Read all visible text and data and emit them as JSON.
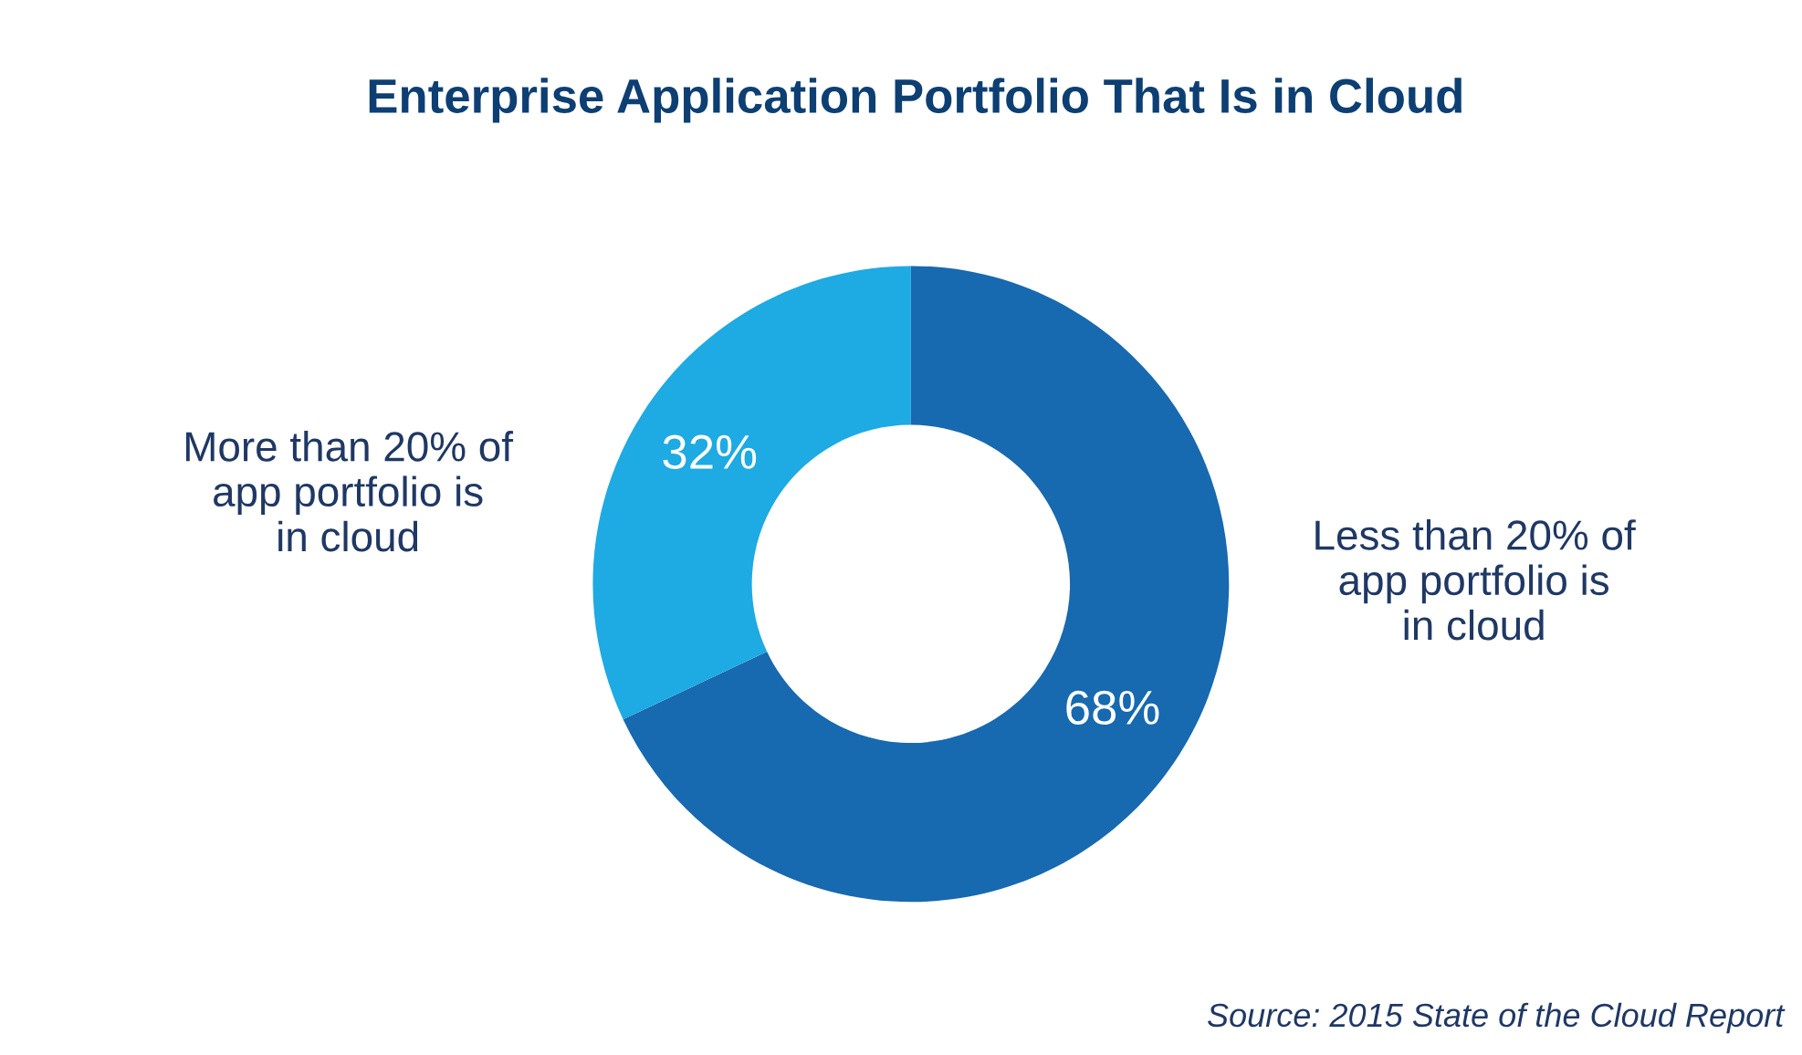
{
  "chart_data": {
    "type": "donut",
    "title": "Enterprise Application Portfolio That Is in Cloud",
    "categories": [
      "Less than 20% of\napp portfolio is\nin cloud",
      "More than 20% of\napp portfolio is\nin cloud"
    ],
    "values": [
      68,
      32
    ],
    "colors": [
      "#1769b0",
      "#1eaae2"
    ],
    "value_labels": [
      "68%",
      "32%"
    ],
    "annotations": [
      "Source: 2015 State of the Cloud Report"
    ]
  }
}
